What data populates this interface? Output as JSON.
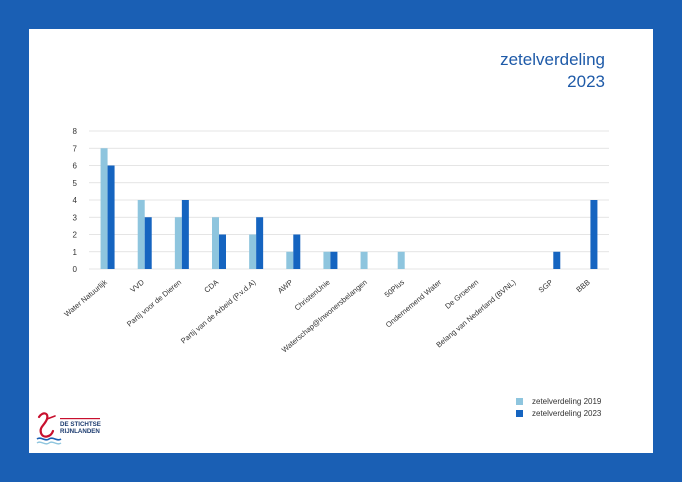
{
  "colors": {
    "series_2019": "#8ec5de",
    "series_2023": "#1564c0",
    "frame": "#1a5fb4",
    "title": "#1e5aa8"
  },
  "title_line1": "zetelverdeling",
  "title_line2": "2023",
  "legend": {
    "item_2019": "zetelverdeling 2019",
    "item_2023": "zetelverdeling 2023"
  },
  "logo": {
    "line1": "DE STICHTSE",
    "line2": "RIJNLANDEN",
    "icon": "heron-logo-icon"
  },
  "chart_data": {
    "type": "bar",
    "title": "zetelverdeling 2023",
    "xlabel": "",
    "ylabel": "",
    "ylim": [
      0,
      8
    ],
    "yticks": [
      "0",
      "1",
      "2",
      "3",
      "4",
      "5",
      "6",
      "7",
      "8"
    ],
    "grid": true,
    "legend_position": "bottom-right",
    "categories": [
      "Water Natuurlijk",
      "VVD",
      "Partij voor de Dieren",
      "CDA",
      "Partij van de Arbeid (P.v.d.A)",
      "AWP",
      "ChristenUnie",
      "Waterschap@Inwonersbelangen",
      "50Plus",
      "Ondernemend Water",
      "De Groenen",
      "Belang van Nederland (BVNL)",
      "SGP",
      "BBB"
    ],
    "series": [
      {
        "name": "zetelverdeling 2019",
        "values": [
          7,
          4,
          3,
          3,
          2,
          1,
          1,
          1,
          1,
          0,
          0,
          0,
          0,
          0
        ]
      },
      {
        "name": "zetelverdeling 2023",
        "values": [
          6,
          3,
          4,
          2,
          3,
          2,
          1,
          0,
          0,
          0,
          0,
          0,
          1,
          4
        ]
      }
    ]
  }
}
